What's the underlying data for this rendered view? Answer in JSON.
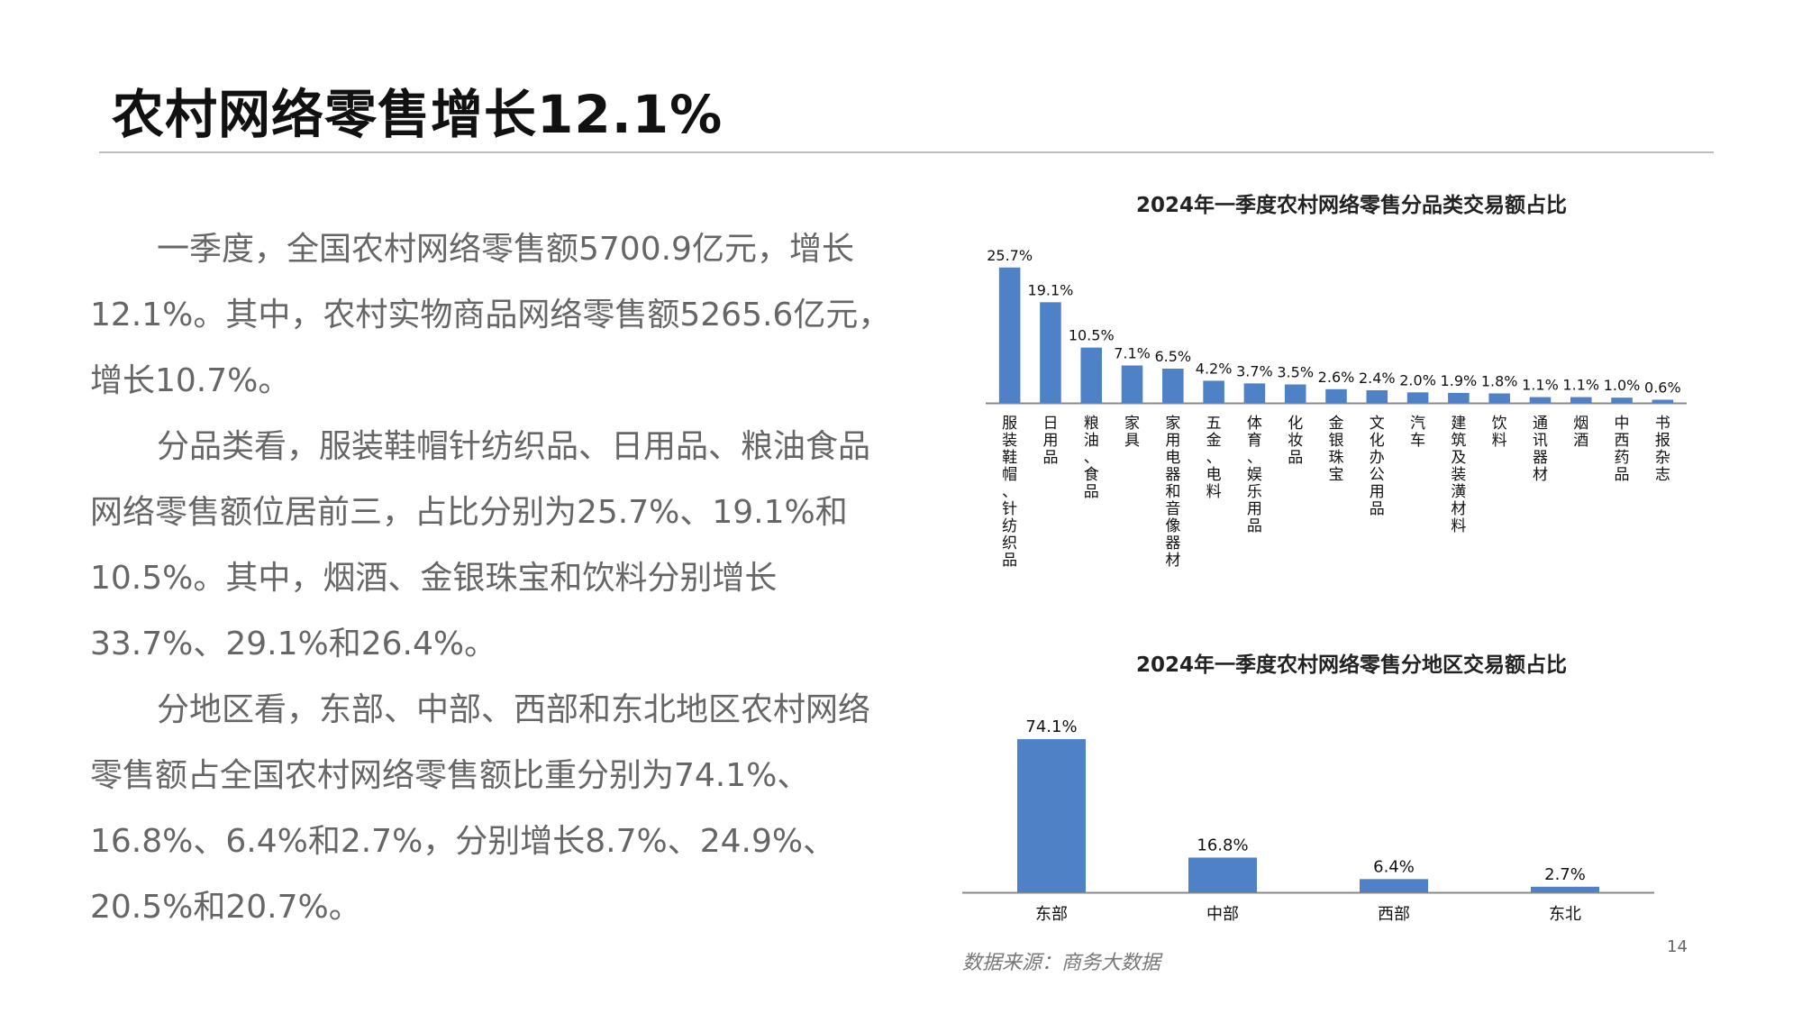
{
  "slide": {
    "title": "农村网络零售增长12.1%",
    "paragraphs": [
      "一季度，全国农村网络零售额5700.9亿元，增长12.1%。其中，农村实物商品网络零售额5265.6亿元，增长10.7%。",
      "分品类看，服装鞋帽针纺织品、日用品、粮油食品网络零售额位居前三，占比分别为25.7%、19.1%和10.5%。其中，烟酒、金银珠宝和饮料分别增长33.7%、29.1%和26.4%。",
      "分地区看，东部、中部、西部和东北地区农村网络零售额占全国农村网络零售额比重分别为74.1%、16.8%、6.4%和2.7%，分别增长8.7%、24.9%、20.5%和20.7%。"
    ],
    "source": "数据来源：商务大数据",
    "page_number": "14"
  },
  "colors": {
    "bar": "#4f81c7",
    "axis": "#888888"
  },
  "chart_data": [
    {
      "type": "bar",
      "title": "2024年一季度农村网络零售分品类交易额占比",
      "categories": [
        "服装鞋帽、针纺织品",
        "日用品",
        "粮油、食品",
        "家具",
        "家用电器和音像器材",
        "五金、电料",
        "体育、娱乐用品",
        "化妆品",
        "金银珠宝",
        "文化办公用品",
        "汽车",
        "建筑及装潢材料",
        "饮料",
        "通讯器材",
        "烟酒",
        "中西药品",
        "书报杂志"
      ],
      "values": [
        25.7,
        19.1,
        10.5,
        7.1,
        6.5,
        4.2,
        3.7,
        3.5,
        2.6,
        2.4,
        2.0,
        1.9,
        1.8,
        1.1,
        1.1,
        1.0,
        0.6
      ],
      "labels": [
        "25.7%",
        "19.1%",
        "10.5%",
        "7.1%",
        "6.5%",
        "4.2%",
        "3.7%",
        "3.5%",
        "2.6%",
        "2.4%",
        "2.0%",
        "1.9%",
        "1.8%",
        "1.1%",
        "1.1%",
        "1.0%",
        "0.6%"
      ],
      "ylim": [
        0,
        26
      ],
      "grid": false
    },
    {
      "type": "bar",
      "title": "2024年一季度农村网络零售分地区交易额占比",
      "categories": [
        "东部",
        "中部",
        "西部",
        "东北"
      ],
      "values": [
        74.1,
        16.8,
        6.4,
        2.7
      ],
      "labels": [
        "74.1%",
        "16.8%",
        "6.4%",
        "2.7%"
      ],
      "ylim": [
        0,
        75
      ],
      "grid": false
    }
  ]
}
